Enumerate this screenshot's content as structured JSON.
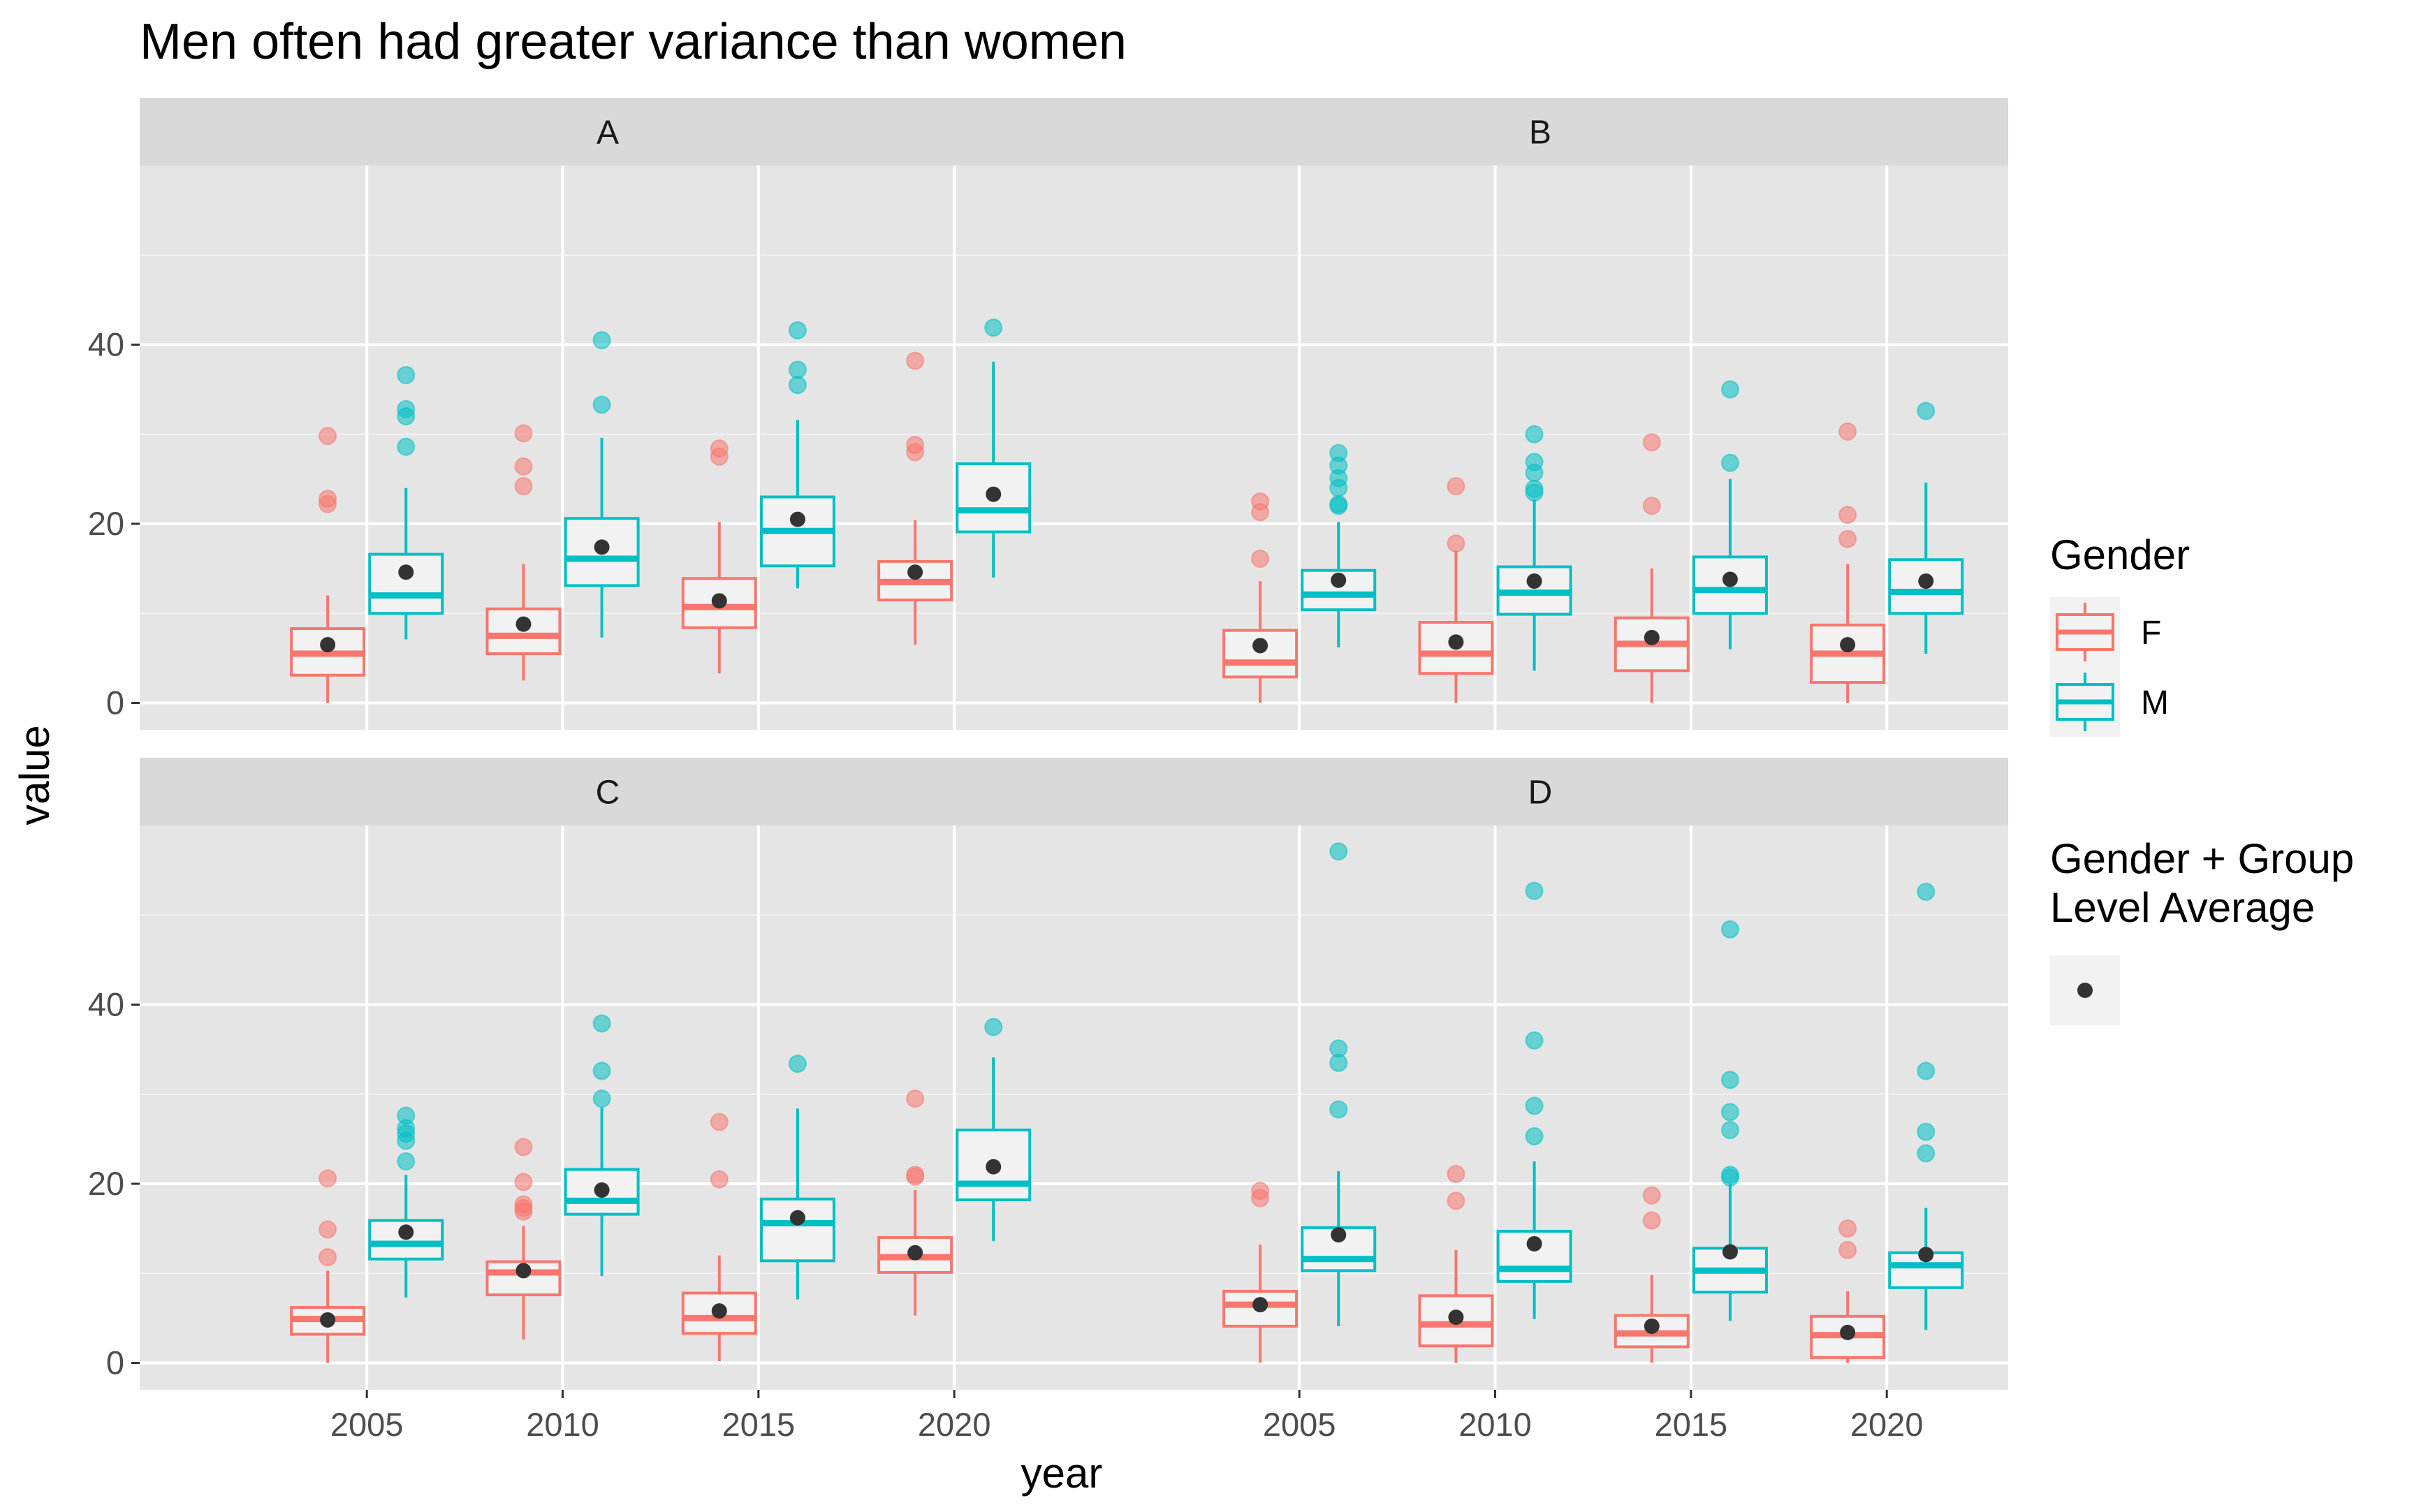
{
  "chart_data": {
    "type": "boxplot",
    "title": "Men often had greater variance than women",
    "xlabel": "year",
    "ylabel": "value",
    "x_ticks": [
      2005,
      2010,
      2015,
      2020
    ],
    "y_ticks": [
      0,
      20,
      40
    ],
    "xlim": [
      1999.2,
      2023.1
    ],
    "ylim": [
      -3,
      60
    ],
    "grid": true,
    "panel_background": "#e5e5e5",
    "strip_background": "#d9d9d9",
    "colors": {
      "F": "#f8766d",
      "M": "#00bfc4",
      "average_point": "#333333"
    },
    "legend": {
      "position": "right",
      "gender_title": "Gender",
      "gender_entries": [
        "F",
        "M"
      ],
      "average_title_line1": "Gender + Group",
      "average_title_line2": "Level Average"
    },
    "panels": [
      {
        "label": "A",
        "boxes": [
          {
            "gender": "F",
            "x": 2004,
            "q1": 3.1,
            "median": 5.5,
            "q3": 8.3,
            "whisker_low": 0.0,
            "whisker_high": 12.0,
            "mean": 6.5,
            "outliers": [
              22.2,
              22.8,
              29.8
            ]
          },
          {
            "gender": "M",
            "x": 2006,
            "q1": 10.0,
            "median": 12.0,
            "q3": 16.6,
            "whisker_low": 7.1,
            "whisker_high": 24.0,
            "mean": 14.6,
            "outliers": [
              28.6,
              32.0,
              32.8,
              36.6
            ]
          },
          {
            "gender": "F",
            "x": 2009,
            "q1": 5.5,
            "median": 7.5,
            "q3": 10.5,
            "whisker_low": 2.5,
            "whisker_high": 15.5,
            "mean": 8.8,
            "outliers": [
              24.2,
              26.4,
              30.1
            ]
          },
          {
            "gender": "M",
            "x": 2011,
            "q1": 13.1,
            "median": 16.1,
            "q3": 20.6,
            "whisker_low": 7.3,
            "whisker_high": 29.6,
            "mean": 17.4,
            "outliers": [
              33.3,
              40.5
            ]
          },
          {
            "gender": "F",
            "x": 2014,
            "q1": 8.4,
            "median": 10.7,
            "q3": 13.9,
            "whisker_low": 3.3,
            "whisker_high": 20.2,
            "mean": 11.4,
            "outliers": [
              27.5,
              28.4
            ]
          },
          {
            "gender": "M",
            "x": 2016,
            "q1": 15.3,
            "median": 19.2,
            "q3": 23.0,
            "whisker_low": 12.8,
            "whisker_high": 31.6,
            "mean": 20.5,
            "outliers": [
              35.5,
              37.2,
              41.6
            ]
          },
          {
            "gender": "F",
            "x": 2019,
            "q1": 11.5,
            "median": 13.5,
            "q3": 15.8,
            "whisker_low": 6.5,
            "whisker_high": 20.4,
            "mean": 14.6,
            "outliers": [
              28.0,
              28.8,
              38.2
            ]
          },
          {
            "gender": "M",
            "x": 2021,
            "q1": 19.1,
            "median": 21.5,
            "q3": 26.7,
            "whisker_low": 14.0,
            "whisker_high": 38.1,
            "mean": 23.3,
            "outliers": [
              41.9
            ]
          }
        ]
      },
      {
        "label": "B",
        "boxes": [
          {
            "gender": "F",
            "x": 2004,
            "q1": 2.9,
            "median": 4.5,
            "q3": 8.1,
            "whisker_low": 0.0,
            "whisker_high": 13.6,
            "mean": 6.4,
            "outliers": [
              16.1,
              21.3,
              22.5
            ]
          },
          {
            "gender": "M",
            "x": 2006,
            "q1": 10.4,
            "median": 12.1,
            "q3": 14.8,
            "whisker_low": 6.2,
            "whisker_high": 20.2,
            "mean": 13.7,
            "outliers": [
              22.0,
              22.2,
              24.0,
              25.1,
              26.5,
              27.9
            ]
          },
          {
            "gender": "F",
            "x": 2009,
            "q1": 3.3,
            "median": 5.5,
            "q3": 9.0,
            "whisker_low": 0.0,
            "whisker_high": 17.0,
            "mean": 6.8,
            "outliers": [
              17.8,
              24.2
            ]
          },
          {
            "gender": "M",
            "x": 2011,
            "q1": 9.9,
            "median": 12.3,
            "q3": 15.2,
            "whisker_low": 3.6,
            "whisker_high": 22.7,
            "mean": 13.6,
            "outliers": [
              23.5,
              23.9,
              25.7,
              26.9,
              30.0
            ]
          },
          {
            "gender": "F",
            "x": 2014,
            "q1": 3.6,
            "median": 6.6,
            "q3": 9.5,
            "whisker_low": 0.0,
            "whisker_high": 15.0,
            "mean": 7.3,
            "outliers": [
              22.0,
              29.1
            ]
          },
          {
            "gender": "M",
            "x": 2016,
            "q1": 10.0,
            "median": 12.6,
            "q3": 16.3,
            "whisker_low": 6.0,
            "whisker_high": 25.0,
            "mean": 13.8,
            "outliers": [
              26.8,
              35.0
            ]
          },
          {
            "gender": "F",
            "x": 2019,
            "q1": 2.3,
            "median": 5.5,
            "q3": 8.7,
            "whisker_low": 0.0,
            "whisker_high": 15.5,
            "mean": 6.5,
            "outliers": [
              18.3,
              21.0,
              30.3
            ]
          },
          {
            "gender": "M",
            "x": 2021,
            "q1": 10.0,
            "median": 12.4,
            "q3": 16.0,
            "whisker_low": 5.5,
            "whisker_high": 24.6,
            "mean": 13.6,
            "outliers": [
              32.6
            ]
          }
        ]
      },
      {
        "label": "C",
        "boxes": [
          {
            "gender": "F",
            "x": 2004,
            "q1": 3.2,
            "median": 4.9,
            "q3": 6.2,
            "whisker_low": 0.0,
            "whisker_high": 10.3,
            "mean": 4.8,
            "outliers": [
              11.8,
              14.9,
              20.6
            ]
          },
          {
            "gender": "M",
            "x": 2006,
            "q1": 11.6,
            "median": 13.3,
            "q3": 15.9,
            "whisker_low": 7.3,
            "whisker_high": 21.0,
            "mean": 14.6,
            "outliers": [
              22.5,
              24.8,
              25.6,
              26.2,
              27.6
            ]
          },
          {
            "gender": "F",
            "x": 2009,
            "q1": 7.6,
            "median": 10.1,
            "q3": 11.3,
            "whisker_low": 2.6,
            "whisker_high": 15.3,
            "mean": 10.3,
            "outliers": [
              16.9,
              17.3,
              17.7,
              20.2,
              24.1
            ]
          },
          {
            "gender": "M",
            "x": 2011,
            "q1": 16.6,
            "median": 18.1,
            "q3": 21.6,
            "whisker_low": 9.7,
            "whisker_high": 28.5,
            "mean": 19.3,
            "outliers": [
              29.5,
              32.6,
              37.9
            ]
          },
          {
            "gender": "F",
            "x": 2014,
            "q1": 3.3,
            "median": 5.0,
            "q3": 7.8,
            "whisker_low": 0.2,
            "whisker_high": 12.0,
            "mean": 5.8,
            "outliers": [
              20.5,
              26.9
            ]
          },
          {
            "gender": "M",
            "x": 2016,
            "q1": 11.4,
            "median": 15.6,
            "q3": 18.3,
            "whisker_low": 7.1,
            "whisker_high": 28.4,
            "mean": 16.2,
            "outliers": [
              33.4
            ]
          },
          {
            "gender": "F",
            "x": 2019,
            "q1": 10.1,
            "median": 11.8,
            "q3": 14.0,
            "whisker_low": 5.3,
            "whisker_high": 19.3,
            "mean": 12.3,
            "outliers": [
              20.8,
              21.0,
              29.5
            ]
          },
          {
            "gender": "M",
            "x": 2021,
            "q1": 18.2,
            "median": 20.0,
            "q3": 26.0,
            "whisker_low": 13.6,
            "whisker_high": 34.1,
            "mean": 21.9,
            "outliers": [
              37.5
            ]
          }
        ]
      },
      {
        "label": "D",
        "boxes": [
          {
            "gender": "F",
            "x": 2004,
            "q1": 4.1,
            "median": 6.5,
            "q3": 8.0,
            "whisker_low": 0.0,
            "whisker_high": 13.2,
            "mean": 6.5,
            "outliers": [
              18.4,
              19.2
            ]
          },
          {
            "gender": "M",
            "x": 2006,
            "q1": 10.3,
            "median": 11.6,
            "q3": 15.1,
            "whisker_low": 4.1,
            "whisker_high": 21.4,
            "mean": 14.3,
            "outliers": [
              28.3,
              33.5,
              35.1,
              57.1
            ]
          },
          {
            "gender": "F",
            "x": 2009,
            "q1": 1.9,
            "median": 4.3,
            "q3": 7.5,
            "whisker_low": 0.0,
            "whisker_high": 12.6,
            "mean": 5.1,
            "outliers": [
              18.1,
              21.1
            ]
          },
          {
            "gender": "M",
            "x": 2011,
            "q1": 9.1,
            "median": 10.5,
            "q3": 14.7,
            "whisker_low": 4.9,
            "whisker_high": 22.5,
            "mean": 13.3,
            "outliers": [
              25.3,
              28.7,
              36.0,
              52.7
            ]
          },
          {
            "gender": "F",
            "x": 2014,
            "q1": 1.8,
            "median": 3.3,
            "q3": 5.3,
            "whisker_low": 0.0,
            "whisker_high": 9.8,
            "mean": 4.1,
            "outliers": [
              15.9,
              18.7
            ]
          },
          {
            "gender": "M",
            "x": 2016,
            "q1": 7.9,
            "median": 10.3,
            "q3": 12.8,
            "whisker_low": 4.7,
            "whisker_high": 20.0,
            "mean": 12.4,
            "outliers": [
              20.7,
              21.0,
              26.0,
              28.0,
              31.6,
              48.4
            ]
          },
          {
            "gender": "F",
            "x": 2019,
            "q1": 0.6,
            "median": 3.1,
            "q3": 5.2,
            "whisker_low": 0.0,
            "whisker_high": 8.0,
            "mean": 3.4,
            "outliers": [
              12.6,
              15.0
            ]
          },
          {
            "gender": "M",
            "x": 2021,
            "q1": 8.4,
            "median": 10.9,
            "q3": 12.3,
            "whisker_low": 3.7,
            "whisker_high": 17.3,
            "mean": 12.1,
            "outliers": [
              23.4,
              25.8,
              32.6,
              52.6
            ]
          }
        ]
      }
    ]
  }
}
